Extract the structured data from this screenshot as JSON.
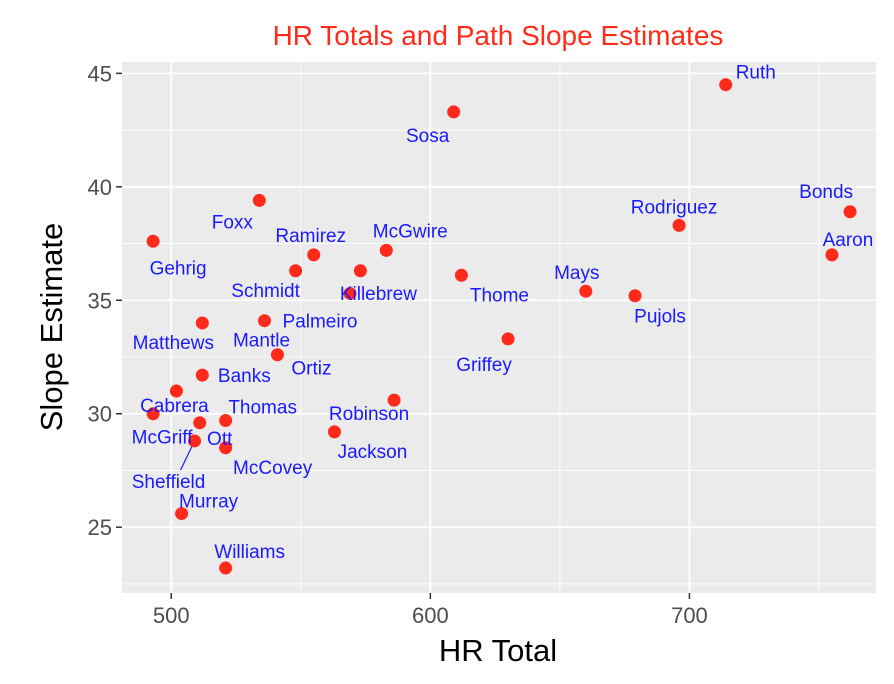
{
  "chart_data": {
    "type": "scatter",
    "title": "HR Totals and Path Slope Estimates",
    "xlabel": "HR Total",
    "ylabel": "Slope Estimate",
    "xlim": [
      481,
      772
    ],
    "ylim": [
      22.1,
      45.5
    ],
    "xticks": [
      500,
      600,
      700
    ],
    "yticks": [
      25,
      30,
      35,
      40,
      45
    ],
    "grid": true,
    "background_color": "#ebebeb",
    "point_color": "#ff2a1a",
    "label_color": "#1a1aff",
    "title_color": "#ff2a1a",
    "points": [
      {
        "name": "Ruth",
        "x": 714,
        "y": 44.5
      },
      {
        "name": "Sosa",
        "x": 609,
        "y": 43.3
      },
      {
        "name": "Foxx",
        "x": 534,
        "y": 39.4
      },
      {
        "name": "Bonds",
        "x": 762,
        "y": 38.9
      },
      {
        "name": "Rodriguez",
        "x": 696,
        "y": 38.3
      },
      {
        "name": "Gehrig",
        "x": 493,
        "y": 37.6
      },
      {
        "name": "McGwire",
        "x": 583,
        "y": 37.2
      },
      {
        "name": "Ramirez",
        "x": 555,
        "y": 37.0
      },
      {
        "name": "Aaron",
        "x": 755,
        "y": 37.0
      },
      {
        "name": "Schmidt",
        "x": 548,
        "y": 36.3
      },
      {
        "name": "Killebrew",
        "x": 573,
        "y": 36.3
      },
      {
        "name": "Thome",
        "x": 612,
        "y": 36.1
      },
      {
        "name": "Mays",
        "x": 660,
        "y": 35.4
      },
      {
        "name": "Palmeiro",
        "x": 569,
        "y": 35.3
      },
      {
        "name": "Pujols",
        "x": 679,
        "y": 35.2
      },
      {
        "name": "Mantle",
        "x": 536,
        "y": 34.1
      },
      {
        "name": "Matthews",
        "x": 512,
        "y": 34.0
      },
      {
        "name": "Griffey",
        "x": 630,
        "y": 33.3
      },
      {
        "name": "Ortiz",
        "x": 541,
        "y": 32.6
      },
      {
        "name": "Banks",
        "x": 512,
        "y": 31.7
      },
      {
        "name": "Cabrera",
        "x": 502,
        "y": 31.0
      },
      {
        "name": "Robinson",
        "x": 586,
        "y": 30.6
      },
      {
        "name": "McGriff",
        "x": 493,
        "y": 30.0
      },
      {
        "name": "Thomas",
        "x": 521,
        "y": 29.7
      },
      {
        "name": "Ott",
        "x": 511,
        "y": 29.6
      },
      {
        "name": "Jackson",
        "x": 563,
        "y": 29.2
      },
      {
        "name": "Sheffield",
        "x": 509,
        "y": 28.8
      },
      {
        "name": "McCovey",
        "x": 521,
        "y": 28.5
      },
      {
        "name": "Murray",
        "x": 504,
        "y": 25.6
      },
      {
        "name": "Williams",
        "x": 521,
        "y": 23.2
      }
    ]
  }
}
